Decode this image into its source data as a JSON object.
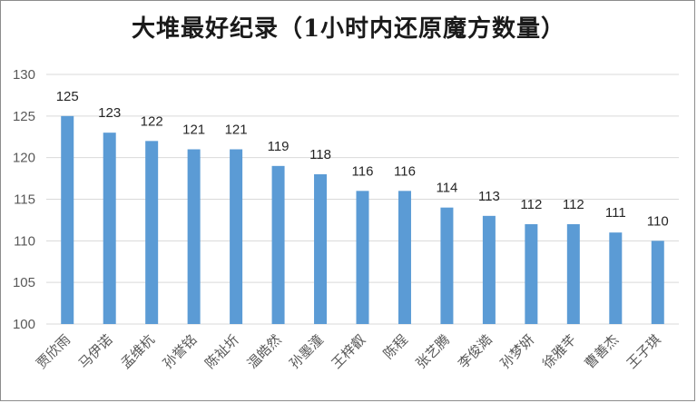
{
  "chart_data": {
    "type": "bar",
    "title": "大堆最好纪录（1小时内还原魔方数量）",
    "categories": [
      "贾欣雨",
      "马伊诺",
      "孟维杭",
      "孙誉铭",
      "陈祉圻",
      "温皓然",
      "孙墨潼",
      "王梓叡",
      "陈程",
      "张艺腾",
      "李俊澔",
      "孙梦妍",
      "徐雅芊",
      "曹善杰",
      "王子琪"
    ],
    "values": [
      125,
      123,
      122,
      121,
      121,
      119,
      118,
      116,
      116,
      114,
      113,
      112,
      112,
      111,
      110
    ],
    "ylim": [
      100,
      130
    ],
    "yticks": [
      "100",
      "105",
      "110",
      "115",
      "120",
      "125",
      "130"
    ],
    "grid": true,
    "legend": "none",
    "bar_color": "#5b9bd5",
    "xlabel": "",
    "ylabel": ""
  }
}
